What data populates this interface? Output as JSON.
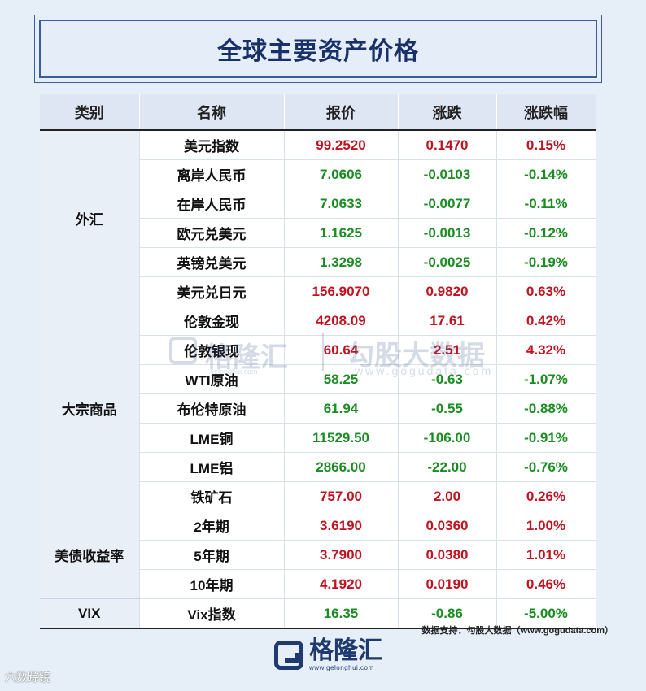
{
  "title": "全球主要资产价格",
  "headers": [
    "类别",
    "名称",
    "报价",
    "涨跌",
    "涨跌幅"
  ],
  "categories": {
    "fx": "外汇",
    "commodities": "大宗商品",
    "treasury": "美债收益率",
    "vix": "VIX"
  },
  "rows": [
    {
      "name": "美元指数",
      "price": "99.2520",
      "change": "0.1470",
      "pct": "0.15%"
    },
    {
      "name": "离岸人民币",
      "price": "7.0606",
      "change": "-0.0103",
      "pct": "-0.14%"
    },
    {
      "name": "在岸人民币",
      "price": "7.0633",
      "change": "-0.0077",
      "pct": "-0.11%"
    },
    {
      "name": "欧元兑美元",
      "price": "1.1625",
      "change": "-0.0013",
      "pct": "-0.12%"
    },
    {
      "name": "英镑兑美元",
      "price": "1.3298",
      "change": "-0.0025",
      "pct": "-0.19%"
    },
    {
      "name": "美元兑日元",
      "price": "156.9070",
      "change": "0.9820",
      "pct": "0.63%"
    },
    {
      "name": "伦敦金现",
      "price": "4208.09",
      "change": "17.61",
      "pct": "0.42%"
    },
    {
      "name": "伦敦银现",
      "price": "60.64",
      "change": "2.51",
      "pct": "4.32%"
    },
    {
      "name": "WTI原油",
      "price": "58.25",
      "change": "-0.63",
      "pct": "-1.07%"
    },
    {
      "name": "布伦特原油",
      "price": "61.94",
      "change": "-0.55",
      "pct": "-0.88%"
    },
    {
      "name": "LME铜",
      "price": "11529.50",
      "change": "-106.00",
      "pct": "-0.91%"
    },
    {
      "name": "LME铝",
      "price": "2866.00",
      "change": "-22.00",
      "pct": "-0.76%"
    },
    {
      "name": "铁矿石",
      "price": "757.00",
      "change": "2.00",
      "pct": "0.26%"
    },
    {
      "name": "2年期",
      "price": "3.6190",
      "change": "0.0360",
      "pct": "1.00%"
    },
    {
      "name": "5年期",
      "price": "3.7900",
      "change": "0.0380",
      "pct": "1.01%"
    },
    {
      "name": "10年期",
      "price": "4.1920",
      "change": "0.0190",
      "pct": "0.46%"
    },
    {
      "name": "Vix指数",
      "price": "16.35",
      "change": "-0.86",
      "pct": "-5.00%"
    }
  ],
  "watermark": {
    "brand": "格隆汇",
    "brand_url": "gelonghui.com",
    "partner": "勾股大数据",
    "partner_url": "www.gogudata.com"
  },
  "source_note": "数据支持：勾股大数据（www.gogudata.com）",
  "footer": {
    "brand": "格隆汇",
    "url": "www.gelonghui.com"
  },
  "corner_mark": "六数踪镜",
  "colors": {
    "up": "#c1121f",
    "down": "#1a8c22",
    "title": "#19306b",
    "frame": "#3a5d99"
  }
}
